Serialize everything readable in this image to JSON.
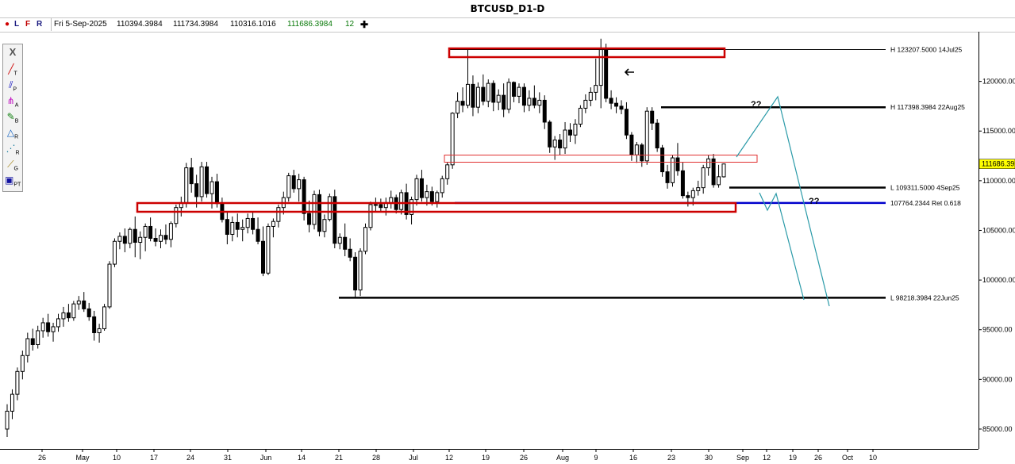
{
  "window": {
    "title": "BTCUSD_D1-D"
  },
  "info_bar": {
    "flags": [
      "L",
      "F",
      "R"
    ],
    "date": "Fri 5-Sep-2025",
    "open": "110394.3984",
    "high": "111734.3984",
    "low": "110316.1016",
    "close": "111686.3984",
    "bars": "12",
    "plus_icon": "plus-icon"
  },
  "toolbar": {
    "close_label": "X",
    "tools": [
      {
        "icon": "trendline-icon",
        "sub": "T"
      },
      {
        "icon": "parallel-channel-icon",
        "sub": "P"
      },
      {
        "icon": "pitchfork-icon",
        "sub": "A"
      },
      {
        "icon": "brush-icon",
        "sub": "B"
      },
      {
        "icon": "fibonacci-retracement-icon",
        "sub": "R"
      },
      {
        "icon": "fibonacci-fan-icon",
        "sub": "R"
      },
      {
        "icon": "gann-icon",
        "sub": "G"
      },
      {
        "icon": "pattern-tool-icon",
        "sub": "PT"
      }
    ]
  },
  "chart_data": {
    "type": "candlestick",
    "symbol": "BTCUSD",
    "timeframe": "D1",
    "ylim": [
      83000,
      125000
    ],
    "y_ticks": [
      "120000.00",
      "115000.00",
      "110000.00",
      "105000.00",
      "100000.00",
      "95000.00",
      "90000.00",
      "85000.00"
    ],
    "y_tick_values": [
      120000,
      115000,
      110000,
      105000,
      100000,
      95000,
      90000,
      85000
    ],
    "x_ticks": [
      "26",
      "May",
      "10",
      "17",
      "24",
      "31",
      "Jun",
      "14",
      "21",
      "28",
      "Jul",
      "12",
      "19",
      "26",
      "Aug",
      "9",
      "16",
      "23",
      "30",
      "Sep",
      "12",
      "19",
      "26",
      "Oct",
      "10"
    ],
    "current_price": "111686.39",
    "current_price_value": 111686.3984,
    "levels": [
      {
        "label": "H 123207.5000 14Jul25",
        "value": 123207.5,
        "color": "#000000"
      },
      {
        "label": "H 117398.3984 22Aug25",
        "value": 117398.3984,
        "color": "#000000"
      },
      {
        "label": "L 109311.5000 4Sep25",
        "value": 109311.5,
        "color": "#000000"
      },
      {
        "label": "107764.2344 Ret 0.618",
        "value": 107764.2344,
        "color": "#0000cc"
      },
      {
        "label": "L 98218.3984 22Jun25",
        "value": 98218.3984,
        "color": "#000000"
      }
    ],
    "annotations": [
      "??",
      "??"
    ],
    "candles": [
      [
        85000,
        87500,
        84200,
        86800
      ],
      [
        86800,
        89000,
        86000,
        88500
      ],
      [
        88500,
        91200,
        87900,
        90800
      ],
      [
        90800,
        92900,
        90000,
        92400
      ],
      [
        92400,
        94700,
        91700,
        94100
      ],
      [
        94100,
        95100,
        92900,
        93500
      ],
      [
        93500,
        95400,
        93100,
        94900
      ],
      [
        94900,
        96200,
        94200,
        95700
      ],
      [
        95700,
        96600,
        94300,
        94800
      ],
      [
        94800,
        95700,
        93800,
        95300
      ],
      [
        95300,
        96600,
        94800,
        96100
      ],
      [
        96100,
        97300,
        95300,
        96700
      ],
      [
        96700,
        97600,
        95800,
        96200
      ],
      [
        96200,
        97900,
        95900,
        97600
      ],
      [
        97600,
        98400,
        97000,
        97900
      ],
      [
        97900,
        98800,
        96800,
        97100
      ],
      [
        97100,
        97700,
        95900,
        96300
      ],
      [
        96300,
        96900,
        93900,
        94700
      ],
      [
        94700,
        95600,
        93700,
        95100
      ],
      [
        95100,
        97600,
        94900,
        97300
      ],
      [
        97300,
        101900,
        97100,
        101600
      ],
      [
        101600,
        104200,
        101300,
        103900
      ],
      [
        103900,
        104800,
        103100,
        104400
      ],
      [
        104400,
        105200,
        102800,
        103700
      ],
      [
        103700,
        105300,
        103200,
        105100
      ],
      [
        105100,
        106400,
        102300,
        103800
      ],
      [
        103800,
        104900,
        102100,
        104300
      ],
      [
        104300,
        105700,
        102900,
        105400
      ],
      [
        105400,
        106300,
        103900,
        104200
      ],
      [
        104200,
        105200,
        103400,
        103900
      ],
      [
        103900,
        105100,
        103200,
        104500
      ],
      [
        104500,
        105600,
        103600,
        104100
      ],
      [
        104100,
        105900,
        103300,
        105700
      ],
      [
        105700,
        107600,
        105300,
        107300
      ],
      [
        107300,
        108400,
        106400,
        107800
      ],
      [
        107800,
        111800,
        107300,
        111300
      ],
      [
        111300,
        112300,
        108800,
        109700
      ],
      [
        109700,
        110600,
        107300,
        108400
      ],
      [
        108400,
        111900,
        107900,
        111400
      ],
      [
        111400,
        111900,
        108300,
        108700
      ],
      [
        108700,
        110400,
        107200,
        109900
      ],
      [
        109900,
        110700,
        107300,
        107700
      ],
      [
        107700,
        108300,
        105800,
        106100
      ],
      [
        106100,
        106900,
        103600,
        104600
      ],
      [
        104600,
        106400,
        103900,
        105800
      ],
      [
        105800,
        106700,
        104300,
        105100
      ],
      [
        105100,
        106100,
        103900,
        105300
      ],
      [
        105300,
        106700,
        104700,
        106200
      ],
      [
        106200,
        106900,
        104600,
        105100
      ],
      [
        105100,
        106300,
        103600,
        103900
      ],
      [
        103900,
        105400,
        100400,
        100700
      ],
      [
        100700,
        105700,
        100500,
        105400
      ],
      [
        105400,
        106200,
        104300,
        105900
      ],
      [
        105900,
        107600,
        105300,
        107300
      ],
      [
        107300,
        108900,
        106600,
        108300
      ],
      [
        108300,
        110800,
        107900,
        110500
      ],
      [
        110500,
        111100,
        108800,
        109200
      ],
      [
        109200,
        110700,
        107900,
        110100
      ],
      [
        110100,
        110400,
        106000,
        106700
      ],
      [
        106700,
        108000,
        104800,
        105600
      ],
      [
        105600,
        109000,
        105100,
        108600
      ],
      [
        108600,
        109100,
        104400,
        104900
      ],
      [
        104900,
        106600,
        104300,
        106100
      ],
      [
        106100,
        108700,
        105900,
        108400
      ],
      [
        108400,
        109100,
        103200,
        103700
      ],
      [
        103700,
        104700,
        103100,
        104300
      ],
      [
        104300,
        105700,
        102400,
        103100
      ],
      [
        103100,
        104200,
        101900,
        102300
      ],
      [
        102300,
        102800,
        98200,
        99000
      ],
      [
        99000,
        103200,
        98400,
        102900
      ],
      [
        102900,
        105700,
        102600,
        105300
      ],
      [
        105300,
        107900,
        105000,
        107600
      ],
      [
        107600,
        108300,
        106900,
        107600
      ],
      [
        107600,
        108200,
        106800,
        107300
      ],
      [
        107300,
        108300,
        106500,
        107800
      ],
      [
        107800,
        109000,
        107200,
        108300
      ],
      [
        108300,
        108600,
        106700,
        107100
      ],
      [
        107100,
        109100,
        106600,
        108800
      ],
      [
        108800,
        109700,
        106100,
        106600
      ],
      [
        106600,
        108400,
        105600,
        108100
      ],
      [
        108100,
        110600,
        107500,
        110200
      ],
      [
        110200,
        111100,
        107900,
        108300
      ],
      [
        108300,
        109600,
        107500,
        108900
      ],
      [
        108900,
        109400,
        107500,
        107900
      ],
      [
        107900,
        109000,
        107300,
        108800
      ],
      [
        108800,
        110500,
        108300,
        110200
      ],
      [
        110200,
        111900,
        109600,
        111600
      ],
      [
        111600,
        116900,
        111200,
        116800
      ],
      [
        116800,
        118900,
        116300,
        118000
      ],
      [
        118000,
        119400,
        116900,
        117600
      ],
      [
        117600,
        123200,
        117300,
        119700
      ],
      [
        119700,
        120600,
        116500,
        117400
      ],
      [
        117400,
        119900,
        116800,
        119400
      ],
      [
        119400,
        120700,
        117600,
        118000
      ],
      [
        118000,
        120200,
        117400,
        119800
      ],
      [
        119800,
        120100,
        117000,
        117900
      ],
      [
        117900,
        119200,
        117100,
        118600
      ],
      [
        118600,
        119800,
        116400,
        117200
      ],
      [
        117200,
        120300,
        116800,
        119900
      ],
      [
        119900,
        120000,
        117900,
        118500
      ],
      [
        118500,
        119800,
        117800,
        119400
      ],
      [
        119400,
        119800,
        116900,
        117600
      ],
      [
        117600,
        119100,
        117000,
        118300
      ],
      [
        118300,
        119600,
        117300,
        117600
      ],
      [
        117600,
        118900,
        116800,
        118100
      ],
      [
        118100,
        118600,
        115200,
        115900
      ],
      [
        115900,
        116100,
        112800,
        113400
      ],
      [
        113400,
        114500,
        112100,
        114100
      ],
      [
        114100,
        114700,
        112600,
        113300
      ],
      [
        113300,
        115900,
        112700,
        115100
      ],
      [
        115100,
        115800,
        113900,
        114600
      ],
      [
        114600,
        116200,
        113700,
        115700
      ],
      [
        115700,
        117600,
        115400,
        117300
      ],
      [
        117300,
        118700,
        116800,
        118100
      ],
      [
        118100,
        119400,
        117500,
        118900
      ],
      [
        118900,
        122300,
        118100,
        119600
      ],
      [
        119600,
        124300,
        117300,
        123200
      ],
      [
        123200,
        123800,
        117900,
        118300
      ],
      [
        118300,
        119100,
        117200,
        117800
      ],
      [
        117800,
        118400,
        116800,
        117500
      ],
      [
        117500,
        118100,
        116700,
        117200
      ],
      [
        117200,
        117900,
        114200,
        114600
      ],
      [
        114600,
        114900,
        112000,
        112600
      ],
      [
        112600,
        113900,
        111800,
        113600
      ],
      [
        113600,
        113800,
        111400,
        112000
      ],
      [
        112000,
        117400,
        111600,
        117000
      ],
      [
        117000,
        117400,
        115100,
        115800
      ],
      [
        115800,
        116200,
        112900,
        113300
      ],
      [
        113300,
        113600,
        110400,
        110900
      ],
      [
        110900,
        111600,
        109200,
        109800
      ],
      [
        109800,
        112600,
        109400,
        112300
      ],
      [
        112300,
        113800,
        110500,
        111000
      ],
      [
        111000,
        111900,
        108200,
        108500
      ],
      [
        108500,
        108900,
        107400,
        108300
      ],
      [
        108300,
        109300,
        107500,
        109000
      ],
      [
        109000,
        110000,
        108500,
        109300
      ],
      [
        109300,
        111600,
        108700,
        111300
      ],
      [
        111300,
        112600,
        110500,
        112200
      ],
      [
        112200,
        112700,
        109300,
        109600
      ],
      [
        109600,
        111600,
        109300,
        110400
      ],
      [
        110394.3984,
        111734.3984,
        110316.1016,
        111686.3984
      ]
    ]
  }
}
